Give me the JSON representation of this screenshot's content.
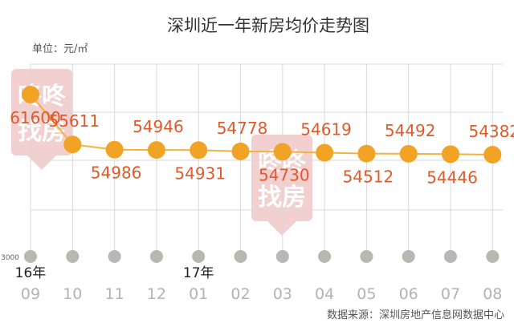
{
  "chart_data": {
    "type": "line",
    "title": "深圳近一年新房均价走势图",
    "unit_label": "单位：元/㎡",
    "categories": [
      "09",
      "10",
      "11",
      "12",
      "01",
      "02",
      "03",
      "04",
      "05",
      "06",
      "07",
      "08"
    ],
    "year_labels": [
      {
        "index": 0,
        "text": "16年"
      },
      {
        "index": 4,
        "text": "17年"
      }
    ],
    "series": [
      {
        "values": [
          61600,
          55611,
          54986,
          54946,
          54931,
          54778,
          54730,
          54619,
          54512,
          54492,
          54446,
          54382
        ]
      }
    ],
    "y_axis_min_label": "3000",
    "source": "数据来源：深圳房地产信息网数据中心",
    "watermark_text": [
      "咚咚",
      "找房"
    ],
    "colors": {
      "line": "#f5b041",
      "marker": "#f0a325",
      "value_label": "#e05a2b",
      "baseline_dot": "#b8b8b0",
      "grid": "#d9d9d9",
      "watermark": "#f0c8c8"
    }
  }
}
